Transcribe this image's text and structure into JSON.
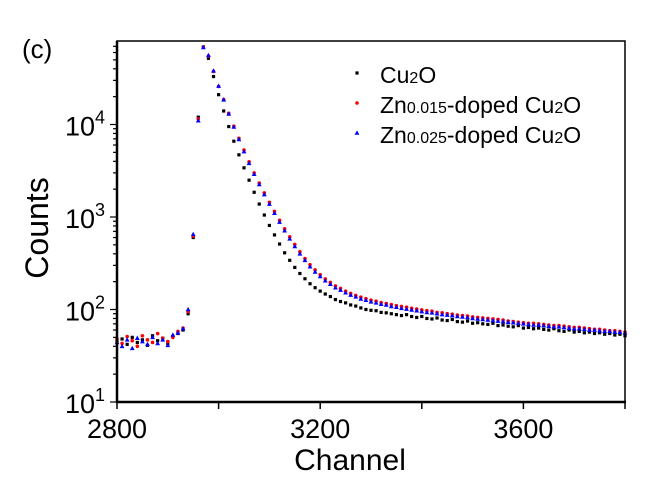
{
  "panel_label": "(c)",
  "chart_data": {
    "type": "scatter",
    "title": "",
    "xlabel": "Channel",
    "ylabel": "Counts",
    "xlim": [
      2800,
      3800
    ],
    "ylim": [
      10,
      80000
    ],
    "yscale": "log",
    "x_ticks": [
      2800,
      3200,
      3600
    ],
    "x_tick_labels": [
      "2800",
      "3200",
      "3600"
    ],
    "y_ticks": [
      {
        "value": 10,
        "base": "10",
        "exp": "1"
      },
      {
        "value": 100,
        "base": "10",
        "exp": "2"
      },
      {
        "value": 1000,
        "base": "10",
        "exp": "3"
      },
      {
        "value": 10000,
        "base": "10",
        "exp": "4"
      }
    ],
    "legend_position": "top-right",
    "x_start": 2800,
    "x_step": 10,
    "series": [
      {
        "name": "Cu2O",
        "legend": {
          "a": "Cu",
          "sub1": "2",
          "b": "O",
          "sub2": "",
          "c": ""
        },
        "color": "#000000",
        "marker": "square",
        "values": [
          45,
          48,
          42,
          50,
          44,
          47,
          41,
          52,
          46,
          49,
          43,
          51,
          55,
          60,
          90,
          600,
          12000,
          69000,
          52000,
          33000,
          21000,
          14000,
          9500,
          6600,
          4700,
          3400,
          2500,
          1850,
          1380,
          1050,
          810,
          640,
          510,
          410,
          340,
          285,
          245,
          215,
          190,
          172,
          158,
          147,
          138,
          128,
          122,
          118,
          112,
          109,
          104,
          100,
          98,
          97,
          93,
          92,
          90,
          88,
          86,
          88,
          84,
          82,
          84,
          80,
          79,
          81,
          77,
          76,
          78,
          74,
          73,
          75,
          71,
          72,
          70,
          69,
          71,
          67,
          68,
          66,
          65,
          67,
          63,
          64,
          62,
          63,
          61,
          60,
          62,
          59,
          58,
          60,
          57,
          58,
          56,
          57,
          55,
          56,
          54,
          55,
          53,
          54,
          52
        ]
      },
      {
        "name": "Zn0.015-doped Cu2O",
        "legend": {
          "a": "Zn",
          "sub1": "0.015",
          "b": "-doped Cu",
          "sub2": "2",
          "c": "O"
        },
        "color": "#ff0000",
        "marker": "circle",
        "values": [
          48,
          43,
          51,
          46,
          40,
          52,
          47,
          44,
          55,
          49,
          45,
          50,
          58,
          63,
          95,
          620,
          11500,
          68500,
          55000,
          37500,
          25800,
          18600,
          13200,
          9600,
          7100,
          5300,
          3950,
          3000,
          2330,
          1820,
          1440,
          1150,
          920,
          745,
          610,
          505,
          420,
          356,
          305,
          268,
          238,
          214,
          196,
          180,
          169,
          158,
          149,
          142,
          136,
          131,
          126,
          123,
          119,
          116,
          113,
          110,
          108,
          106,
          103,
          101,
          99,
          97,
          96,
          93,
          92,
          90,
          89,
          87,
          86,
          85,
          83,
          82,
          81,
          80,
          79,
          78,
          77,
          75,
          74,
          73,
          72,
          71,
          71,
          70,
          69,
          68,
          67,
          67,
          66,
          65,
          64,
          64,
          63,
          62,
          61,
          61,
          60,
          59,
          59,
          58,
          57
        ]
      },
      {
        "name": "Zn0.025-doped Cu2O",
        "legend": {
          "a": "Zn",
          "sub1": "0.025",
          "b": "-doped Cu",
          "sub2": "2",
          "c": "O"
        },
        "color": "#0000ff",
        "marker": "triangle",
        "values": [
          44,
          40,
          47,
          38,
          49,
          45,
          42,
          50,
          43,
          47,
          41,
          53,
          56,
          62,
          100,
          650,
          11000,
          68000,
          56000,
          38000,
          26000,
          18500,
          13000,
          9400,
          6900,
          5100,
          3800,
          2900,
          2250,
          1750,
          1380,
          1100,
          880,
          710,
          580,
          480,
          400,
          340,
          290,
          255,
          228,
          205,
          188,
          172,
          162,
          152,
          143,
          137,
          130,
          126,
          121,
          118,
          114,
          112,
          108,
          106,
          103,
          101,
          99,
          97,
          95,
          93,
          92,
          90,
          88,
          87,
          86,
          84,
          83,
          82,
          80,
          79,
          78,
          77,
          76,
          75,
          74,
          73,
          72,
          71,
          70,
          69,
          68,
          68,
          67,
          66,
          65,
          65,
          64,
          63,
          62,
          62,
          61,
          60,
          60,
          59,
          58,
          58,
          57,
          57,
          56
        ]
      }
    ]
  }
}
